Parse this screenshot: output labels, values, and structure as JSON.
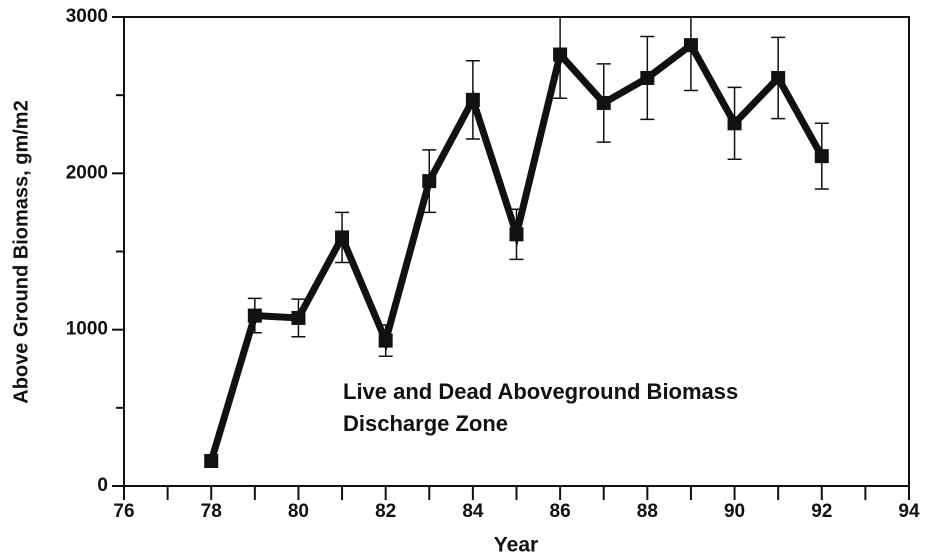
{
  "chart_data": {
    "type": "line",
    "xlabel": "Year",
    "ylabel": "Above Ground Biomass, gm/m2",
    "annotations": [
      "Live and Dead Aboveground Biomass",
      "Discharge Zone"
    ],
    "x": [
      78,
      79,
      80,
      81,
      82,
      83,
      84,
      85,
      86,
      87,
      88,
      89,
      90,
      91,
      92
    ],
    "series": [
      {
        "color": "#111111",
        "values": [
          160,
          1090,
          1075,
          1590,
          930,
          1950,
          2470,
          1610,
          2760,
          2450,
          2610,
          2820,
          2320,
          2610,
          2110
        ],
        "errors": [
          0,
          110,
          120,
          160,
          100,
          200,
          250,
          160,
          280,
          250,
          265,
          290,
          230,
          260,
          210
        ]
      }
    ],
    "xlim": [
      76,
      94
    ],
    "xticks": [
      76,
      78,
      80,
      82,
      84,
      86,
      88,
      90,
      92,
      94
    ],
    "xminor_ticks": [
      77,
      79,
      81,
      83,
      85,
      87,
      89,
      91,
      93
    ],
    "ylim": [
      0,
      3000
    ],
    "yticks": [
      0,
      1000,
      2000,
      3000
    ],
    "yminor_ticks": [
      500,
      1500,
      2500
    ]
  }
}
